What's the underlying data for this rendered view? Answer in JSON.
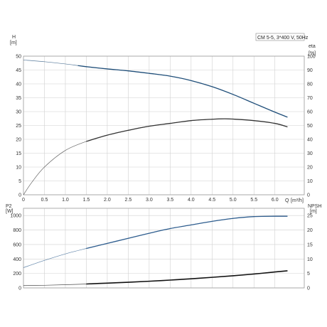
{
  "chart_data": [
    {
      "type": "line",
      "legend_text": "CM 5-5, 3*400 V, 50Hz",
      "left_axis": {
        "label": "H",
        "unit": "[m]",
        "ticks": [
          "0",
          "5",
          "10",
          "15",
          "20",
          "25",
          "30",
          "35",
          "40",
          "45",
          "50"
        ],
        "range": [
          0,
          50
        ]
      },
      "right_axis": {
        "label": "eta",
        "unit": "[%]",
        "ticks": [
          "0",
          "10",
          "20",
          "30",
          "40",
          "50",
          "60",
          "70",
          "80",
          "90",
          "100"
        ],
        "range": [
          0,
          100
        ]
      },
      "x_axis": {
        "label": "Q",
        "unit": "[m³/h]",
        "ticks": [
          "0",
          "0.5",
          "1.0",
          "1.5",
          "2.0",
          "2.5",
          "3.0",
          "3.5",
          "4.0",
          "4.5",
          "5.0",
          "5.5",
          "6.0"
        ],
        "range": [
          0,
          6.7
        ]
      },
      "grid": true,
      "series": [
        {
          "name": "H",
          "color": "#1f4e79",
          "axis": "left",
          "x": [
            0,
            0.5,
            1.0,
            1.3,
            1.5,
            2.0,
            2.5,
            3.0,
            3.5,
            4.0,
            4.5,
            5.0,
            5.5,
            6.0,
            6.3
          ],
          "y": [
            48.6,
            48.0,
            47.2,
            46.6,
            46.2,
            45.4,
            44.7,
            43.8,
            42.8,
            41.2,
            39.0,
            36.2,
            33.0,
            29.8,
            28.0
          ]
        },
        {
          "name": "eta",
          "color": "#333333",
          "axis": "right",
          "x": [
            0,
            0.2,
            0.5,
            1.0,
            1.5,
            2.0,
            2.5,
            3.0,
            3.5,
            4.0,
            4.5,
            4.8,
            5.0,
            5.5,
            6.0,
            6.3
          ],
          "y": [
            0,
            9,
            20,
            32,
            38.5,
            43,
            46.5,
            49.5,
            51.5,
            53.5,
            54.5,
            54.8,
            54.6,
            53.5,
            51.5,
            49
          ]
        }
      ]
    },
    {
      "type": "line",
      "left_axis": {
        "label": "P2",
        "unit": "[W]",
        "ticks": [
          "0",
          "200",
          "400",
          "600",
          "800",
          "1000"
        ],
        "range": [
          0,
          1100
        ]
      },
      "right_axis": {
        "label": "NPSH",
        "unit": "[m]",
        "ticks": [
          "0",
          "5",
          "10",
          "15",
          "20",
          "25"
        ],
        "range": [
          0,
          27.5
        ]
      },
      "x_axis": {
        "range": [
          0,
          6.7
        ]
      },
      "grid": true,
      "series": [
        {
          "name": "P2",
          "color": "#2e5d8e",
          "axis": "left",
          "x": [
            0,
            0.5,
            1.0,
            1.5,
            2.0,
            2.5,
            3.0,
            3.5,
            4.0,
            4.5,
            5.0,
            5.5,
            6.0,
            6.3
          ],
          "y": [
            280,
            380,
            470,
            545,
            615,
            685,
            755,
            820,
            870,
            920,
            960,
            985,
            990,
            990
          ]
        },
        {
          "name": "NPSH",
          "color": "#111111",
          "axis": "right",
          "x": [
            0,
            0.5,
            1.0,
            1.5,
            2.0,
            2.5,
            3.0,
            3.5,
            4.0,
            4.5,
            5.0,
            5.5,
            6.0,
            6.3
          ],
          "y": [
            0.8,
            0.9,
            1.1,
            1.35,
            1.65,
            1.95,
            2.3,
            2.7,
            3.15,
            3.65,
            4.2,
            4.8,
            5.5,
            5.9
          ]
        }
      ]
    }
  ]
}
